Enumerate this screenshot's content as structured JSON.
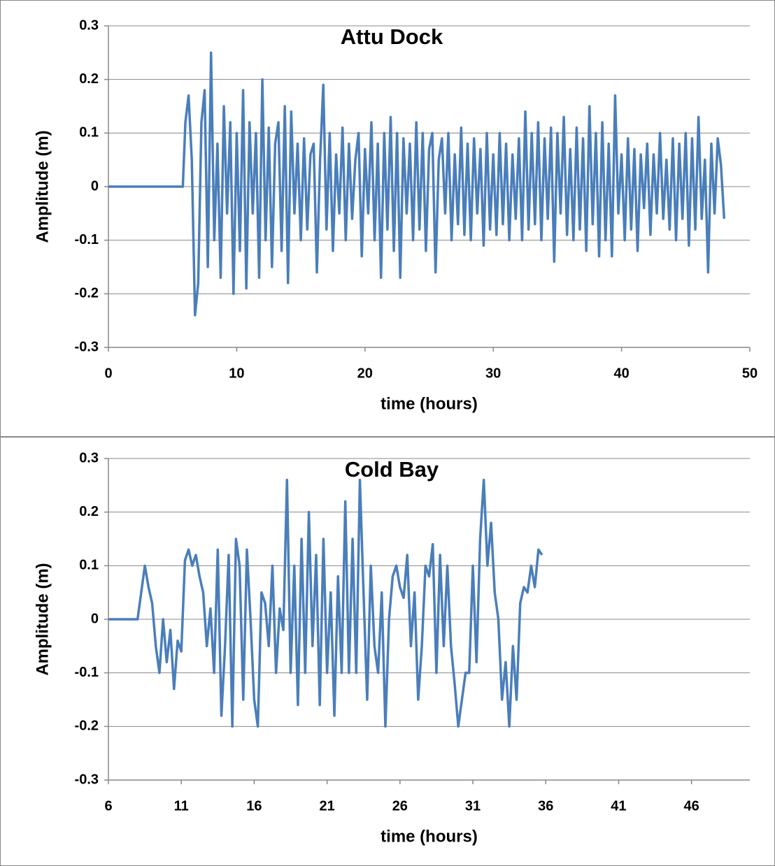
{
  "chart_data": [
    {
      "type": "line",
      "title": "Attu Dock",
      "xlabel": "time (hours)",
      "ylabel": "Amplitude (m)",
      "xlim": [
        0,
        50
      ],
      "xticks": [
        0,
        10,
        20,
        30,
        40,
        50
      ],
      "ylim": [
        -0.3,
        0.3
      ],
      "yticks": [
        -0.3,
        -0.2,
        -0.1,
        0,
        0.1,
        0.2,
        0.3
      ],
      "grid": true,
      "series": [
        {
          "color": "#4a7ebb",
          "x": [
            0,
            5.8,
            6,
            6.25,
            6.5,
            6.75,
            7,
            7.25,
            7.5,
            7.75,
            8,
            8.25,
            8.5,
            8.75,
            9,
            9.25,
            9.5,
            9.75,
            10,
            10.25,
            10.5,
            10.75,
            11,
            11.25,
            11.5,
            11.75,
            12,
            12.25,
            12.5,
            12.75,
            13,
            13.25,
            13.5,
            13.75,
            14,
            14.25,
            14.5,
            14.75,
            15,
            15.25,
            15.5,
            15.75,
            16,
            16.25,
            16.5,
            16.75,
            17,
            17.25,
            17.5,
            17.75,
            18,
            18.25,
            18.5,
            18.75,
            19,
            19.25,
            19.5,
            19.75,
            20,
            20.25,
            20.5,
            20.75,
            21,
            21.25,
            21.5,
            21.75,
            22,
            22.25,
            22.5,
            22.75,
            23,
            23.25,
            23.5,
            23.75,
            24,
            24.25,
            24.5,
            24.75,
            25,
            25.25,
            25.5,
            25.75,
            26,
            26.25,
            26.5,
            26.75,
            27,
            27.25,
            27.5,
            27.75,
            28,
            28.25,
            28.5,
            28.75,
            29,
            29.25,
            29.5,
            29.75,
            30,
            30.25,
            30.5,
            30.75,
            31,
            31.25,
            31.5,
            31.75,
            32,
            32.25,
            32.5,
            32.75,
            33,
            33.25,
            33.5,
            33.75,
            34,
            34.25,
            34.5,
            34.75,
            35,
            35.25,
            35.5,
            35.75,
            36,
            36.25,
            36.5,
            36.75,
            37,
            37.25,
            37.5,
            37.75,
            38,
            38.25,
            38.5,
            38.75,
            39,
            39.25,
            39.5,
            39.75,
            40,
            40.25,
            40.5,
            40.75,
            41,
            41.25,
            41.5,
            41.75,
            42,
            42.25,
            42.5,
            42.75,
            43,
            43.25,
            43.5,
            43.75,
            44,
            44.25,
            44.5,
            44.75,
            45,
            45.25,
            45.5,
            45.75,
            46,
            46.25,
            46.5,
            46.75,
            47,
            47.25,
            47.5,
            47.75,
            48
          ],
          "values": [
            0,
            0,
            0.12,
            0.17,
            0.05,
            -0.24,
            -0.18,
            0.12,
            0.18,
            -0.15,
            0.25,
            -0.1,
            0.08,
            -0.17,
            0.15,
            -0.05,
            0.12,
            -0.2,
            0.1,
            -0.12,
            0.18,
            -0.19,
            0.12,
            -0.05,
            0.1,
            -0.17,
            0.2,
            -0.1,
            0.11,
            -0.15,
            0.08,
            0.12,
            -0.12,
            0.15,
            -0.18,
            0.14,
            -0.05,
            0.08,
            -0.1,
            0.09,
            -0.08,
            0.06,
            0.08,
            -0.16,
            0.05,
            0.19,
            -0.08,
            0.1,
            -0.12,
            0.06,
            -0.05,
            0.11,
            -0.1,
            0.08,
            -0.06,
            0.05,
            0.1,
            -0.13,
            0.07,
            -0.05,
            0.12,
            -0.1,
            0.08,
            -0.17,
            0.1,
            -0.08,
            0.13,
            -0.12,
            0.1,
            -0.17,
            0.09,
            -0.05,
            0.08,
            -0.1,
            0.12,
            -0.08,
            0.1,
            -0.12,
            0.07,
            0.1,
            -0.16,
            0.05,
            0.09,
            -0.05,
            0.1,
            -0.1,
            0.06,
            -0.07,
            0.11,
            -0.09,
            0.08,
            -0.1,
            0.09,
            -0.05,
            0.07,
            -0.11,
            0.1,
            -0.08,
            0.06,
            -0.09,
            0.1,
            -0.07,
            0.08,
            -0.1,
            0.06,
            -0.06,
            0.09,
            -0.1,
            0.14,
            -0.08,
            0.1,
            -0.07,
            0.12,
            -0.1,
            0.09,
            -0.06,
            0.11,
            -0.14,
            0.1,
            -0.05,
            0.13,
            -0.09,
            0.07,
            -0.1,
            0.11,
            -0.08,
            0.09,
            -0.12,
            0.15,
            -0.07,
            0.1,
            -0.13,
            0.12,
            -0.1,
            0.08,
            -0.13,
            0.17,
            -0.05,
            0.06,
            -0.1,
            0.09,
            -0.08,
            0.07,
            -0.12,
            0.06,
            -0.04,
            0.08,
            -0.09,
            0.06,
            -0.05,
            0.1,
            -0.06,
            0.05,
            -0.08,
            0.09,
            -0.1,
            0.08,
            -0.06,
            0.1,
            -0.11,
            0.09,
            -0.08,
            0.13,
            -0.06,
            0.05,
            -0.16,
            0.08,
            -0.05,
            0.09,
            0.04,
            -0.06
          ]
        }
      ]
    },
    {
      "type": "line",
      "title": "Cold Bay",
      "xlabel": "time (hours)",
      "ylabel": "Amplitude (m)",
      "xlim": [
        6,
        50
      ],
      "xticks": [
        6,
        11,
        16,
        21,
        26,
        31,
        36,
        41,
        46
      ],
      "ylim": [
        -0.3,
        0.3
      ],
      "yticks": [
        -0.3,
        -0.2,
        -0.1,
        0,
        0.1,
        0.2,
        0.3
      ],
      "grid": true,
      "series": [
        {
          "color": "#4a7ebb",
          "x": [
            6,
            8,
            8.25,
            8.5,
            8.75,
            9,
            9.25,
            9.5,
            9.75,
            10,
            10.25,
            10.5,
            10.75,
            11,
            11.25,
            11.5,
            11.75,
            12,
            12.25,
            12.5,
            12.75,
            13,
            13.25,
            13.5,
            13.75,
            14,
            14.25,
            14.5,
            14.75,
            15,
            15.25,
            15.5,
            15.75,
            16,
            16.25,
            16.5,
            16.75,
            17,
            17.25,
            17.5,
            17.75,
            18,
            18.25,
            18.5,
            18.75,
            19,
            19.25,
            19.5,
            19.75,
            20,
            20.25,
            20.5,
            20.75,
            21,
            21.25,
            21.5,
            21.75,
            22,
            22.25,
            22.5,
            22.75,
            23,
            23.25,
            23.5,
            23.75,
            24,
            24.25,
            24.5,
            24.75,
            25,
            25.25,
            25.5,
            25.75,
            26,
            26.25,
            26.5,
            26.75,
            27,
            27.25,
            27.5,
            27.75,
            28,
            28.25,
            28.5,
            28.75,
            29,
            29.25,
            29.5,
            29.75,
            30,
            30.25,
            30.5,
            30.75,
            31,
            31.25,
            31.5,
            31.75,
            32,
            32.25,
            32.5,
            32.75,
            33,
            33.25,
            33.5,
            33.75,
            34,
            34.25,
            34.5,
            34.75,
            35,
            35.25,
            35.5,
            35.75
          ],
          "values": [
            0,
            0,
            0.05,
            0.1,
            0.06,
            0.03,
            -0.05,
            -0.1,
            0,
            -0.08,
            -0.02,
            -0.13,
            -0.04,
            -0.06,
            0.11,
            0.13,
            0.1,
            0.12,
            0.08,
            0.05,
            -0.05,
            0.02,
            -0.1,
            0.13,
            -0.18,
            -0.05,
            0.12,
            -0.2,
            0.15,
            0.1,
            -0.15,
            0.13,
            0,
            -0.15,
            -0.2,
            0.05,
            0.03,
            -0.05,
            0.1,
            -0.1,
            0.02,
            -0.02,
            0.26,
            -0.1,
            0.1,
            -0.16,
            0.15,
            -0.1,
            0.2,
            -0.05,
            0.12,
            -0.16,
            0.15,
            -0.1,
            0.05,
            -0.18,
            0.08,
            -0.1,
            0.22,
            -0.1,
            0.15,
            -0.1,
            0.26,
            0.05,
            -0.15,
            0.1,
            -0.05,
            -0.1,
            0.05,
            -0.2,
            0,
            0.08,
            0.1,
            0.06,
            0.04,
            0.12,
            -0.05,
            0.05,
            -0.15,
            -0.05,
            0.1,
            0.08,
            0.14,
            -0.1,
            0.12,
            -0.05,
            0.1,
            -0.05,
            -0.12,
            -0.2,
            -0.15,
            -0.1,
            -0.1,
            0.1,
            -0.08,
            0.15,
            0.26,
            0.1,
            0.18,
            0.05,
            0,
            -0.15,
            -0.08,
            -0.2,
            -0.05,
            -0.15,
            0.03,
            0.06,
            0.05,
            0.1,
            0.06,
            0.13,
            0.12
          ]
        }
      ]
    }
  ]
}
